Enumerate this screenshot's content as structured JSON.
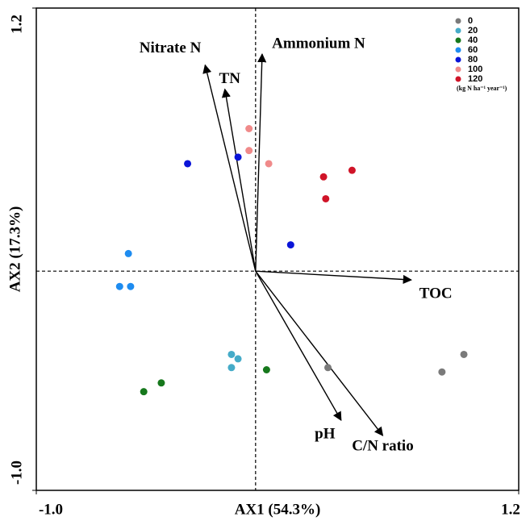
{
  "chart_data": {
    "type": "scatter",
    "xlabel": "AX1 (54.3%)",
    "ylabel": "AX2 (17.3%)",
    "xlim": [
      -1.0,
      1.2
    ],
    "ylim": [
      -1.0,
      1.2
    ],
    "xticks": [
      {
        "value": -1,
        "label": "-1.0"
      },
      1.2
    ],
    "yticks": [
      {
        "value": -1,
        "label": "-1.0"
      },
      1.2
    ],
    "legend_position": "upper right",
    "legend_note": "(kg N ha⁻¹ year⁻¹)",
    "series": [
      {
        "name": "0",
        "color": "#7a7a7a",
        "x": [
          0.33,
          0.85,
          0.95
        ],
        "values": [
          -0.44,
          -0.46,
          -0.38
        ]
      },
      {
        "name": "20",
        "color": "#45abc8",
        "x": [
          -0.11,
          -0.08,
          -0.11
        ],
        "values": [
          -0.38,
          -0.4,
          -0.44
        ]
      },
      {
        "name": "40",
        "color": "#16781c",
        "x": [
          0.05,
          -0.43,
          -0.51
        ],
        "values": [
          -0.45,
          -0.51,
          -0.55
        ]
      },
      {
        "name": "60",
        "color": "#1e8cf0",
        "x": [
          -0.58,
          -0.62,
          -0.57
        ],
        "values": [
          0.08,
          -0.07,
          -0.07
        ]
      },
      {
        "name": "80",
        "color": "#0a14d8",
        "x": [
          -0.31,
          -0.08,
          0.16
        ],
        "values": [
          0.49,
          0.52,
          0.12
        ]
      },
      {
        "name": "100",
        "color": "#f08a8a",
        "x": [
          -0.03,
          -0.03,
          0.06
        ],
        "values": [
          0.65,
          0.55,
          0.49
        ]
      },
      {
        "name": "120",
        "color": "#d01428",
        "x": [
          0.31,
          0.44,
          0.32
        ],
        "values": [
          0.43,
          0.46,
          0.33
        ]
      }
    ],
    "vectors": [
      {
        "label": "Nitrate N",
        "x": -0.23,
        "y": 0.94
      },
      {
        "label": "TN",
        "x": -0.14,
        "y": 0.83
      },
      {
        "label": "Ammonium N",
        "x": 0.03,
        "y": 0.99
      },
      {
        "label": "TOC",
        "x": 0.71,
        "y": -0.04
      },
      {
        "label": "pH",
        "x": 0.39,
        "y": -0.68
      },
      {
        "label": "C/N ratio",
        "x": 0.58,
        "y": -0.75
      }
    ]
  }
}
